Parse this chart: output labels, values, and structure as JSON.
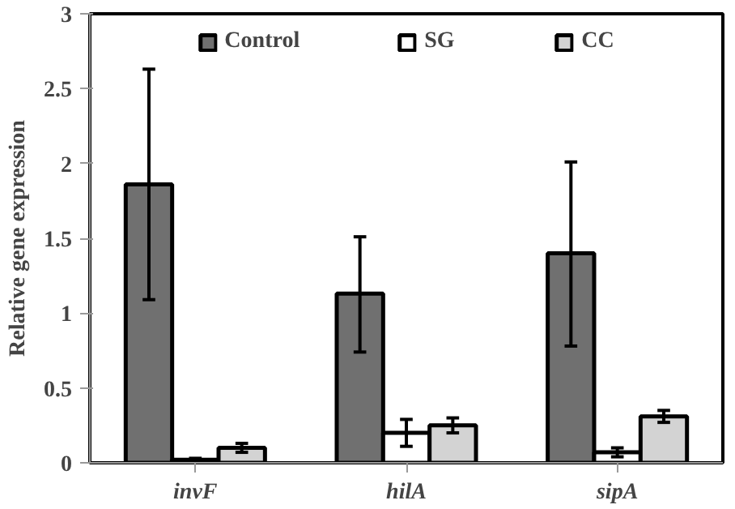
{
  "chart_data": {
    "type": "bar",
    "ylabel": "Relative gene expression",
    "categories": [
      "invF",
      "hilA",
      "sipA"
    ],
    "series": [
      {
        "name": "Control",
        "color": "#707070",
        "values": [
          1.86,
          1.13,
          1.4
        ],
        "errors": [
          [
            1.09,
            2.63
          ],
          [
            0.74,
            1.51
          ],
          [
            0.78,
            2.01
          ]
        ]
      },
      {
        "name": "SG",
        "color": "#ffffff",
        "values": [
          0.02,
          0.2,
          0.07
        ],
        "errors": [
          [
            0.01,
            0.03
          ],
          [
            0.11,
            0.29
          ],
          [
            0.04,
            0.1
          ]
        ]
      },
      {
        "name": "CC",
        "color": "#d3d3d3",
        "values": [
          0.1,
          0.25,
          0.31
        ],
        "errors": [
          [
            0.07,
            0.13
          ],
          [
            0.2,
            0.3
          ],
          [
            0.27,
            0.35
          ]
        ]
      }
    ],
    "ylim": [
      0,
      3
    ],
    "yticks": [
      0,
      0.5,
      1,
      1.5,
      2,
      2.5,
      3
    ],
    "grid": false,
    "legend": "top"
  }
}
